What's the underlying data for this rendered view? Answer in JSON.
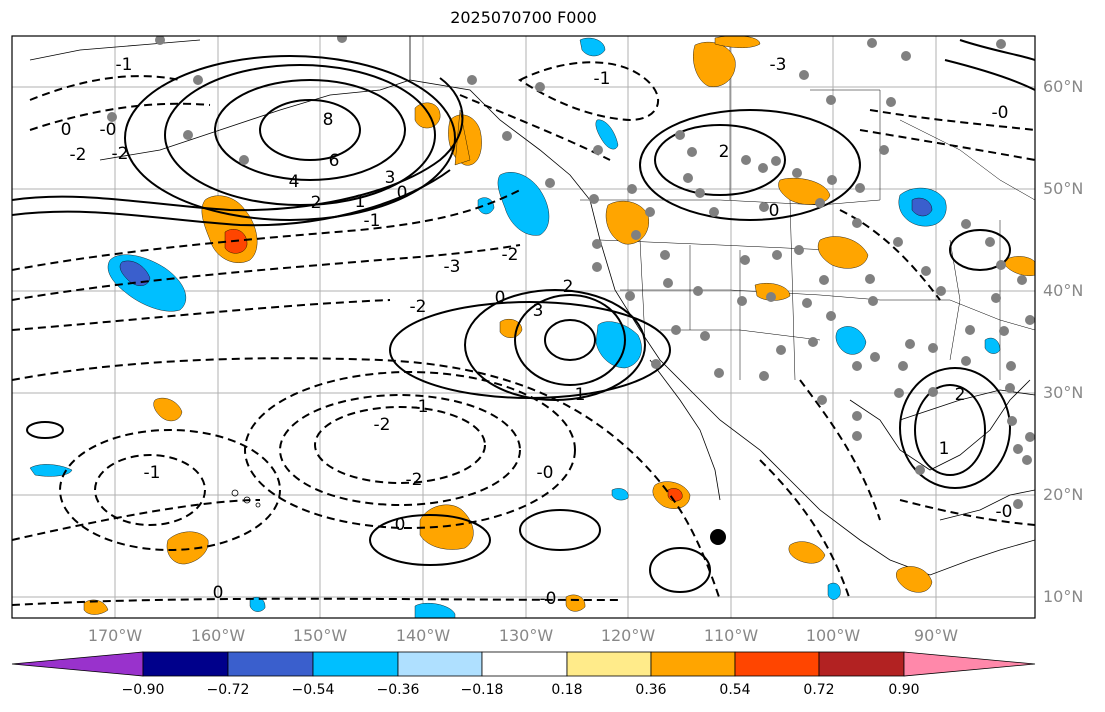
{
  "title": "2025070700 F000",
  "lat_labels": [
    "60°N",
    "50°N",
    "40°N",
    "30°N",
    "20°N",
    "10°N"
  ],
  "lon_labels": [
    "170°W",
    "160°W",
    "150°W",
    "140°W",
    "130°W",
    "120°W",
    "110°W",
    "100°W",
    "90°W"
  ],
  "colorbar": {
    "colors": [
      "#9932cc",
      "#00008b",
      "#3a5fcd",
      "#00bfff",
      "#afe0ff",
      "#ffffff",
      "#ffeb8a",
      "#ffa500",
      "#ff4500",
      "#b22222",
      "#ff88aa"
    ],
    "tick_labels": [
      "−0.90",
      "−0.72",
      "−0.54",
      "−0.36",
      "−0.18",
      "0.18",
      "0.36",
      "0.54",
      "0.72",
      "0.90"
    ]
  },
  "contour_labels": [
    {
      "text": "8"
    },
    {
      "text": "6"
    },
    {
      "text": "4"
    },
    {
      "text": "3"
    },
    {
      "text": "2"
    },
    {
      "text": "1"
    },
    {
      "text": "0"
    },
    {
      "text": "-1"
    },
    {
      "text": "-2"
    },
    {
      "text": "-3"
    },
    {
      "text": "-2"
    },
    {
      "text": "-1"
    },
    {
      "text": "-0"
    },
    {
      "text": "-2"
    },
    {
      "text": "-2"
    },
    {
      "text": "-1"
    },
    {
      "text": "1"
    },
    {
      "text": "3"
    },
    {
      "text": "2"
    },
    {
      "text": "0"
    },
    {
      "text": "-0"
    },
    {
      "text": "0"
    },
    {
      "text": "2"
    },
    {
      "text": "-2"
    },
    {
      "text": "0"
    },
    {
      "text": "-0"
    },
    {
      "text": "1"
    },
    {
      "text": "2"
    },
    {
      "text": "0"
    },
    {
      "text": "-0"
    },
    {
      "text": "-1"
    },
    {
      "text": "-3"
    },
    {
      "text": "-1"
    },
    {
      "text": "-2"
    },
    {
      "text": "0"
    },
    {
      "text": "-0"
    }
  ],
  "colors": {
    "frame": "#000000",
    "grid": "#b0b0b0",
    "axis_text": "#888888",
    "station": "#808080",
    "positive": "#ffa500",
    "negative": "#00bfff"
  }
}
